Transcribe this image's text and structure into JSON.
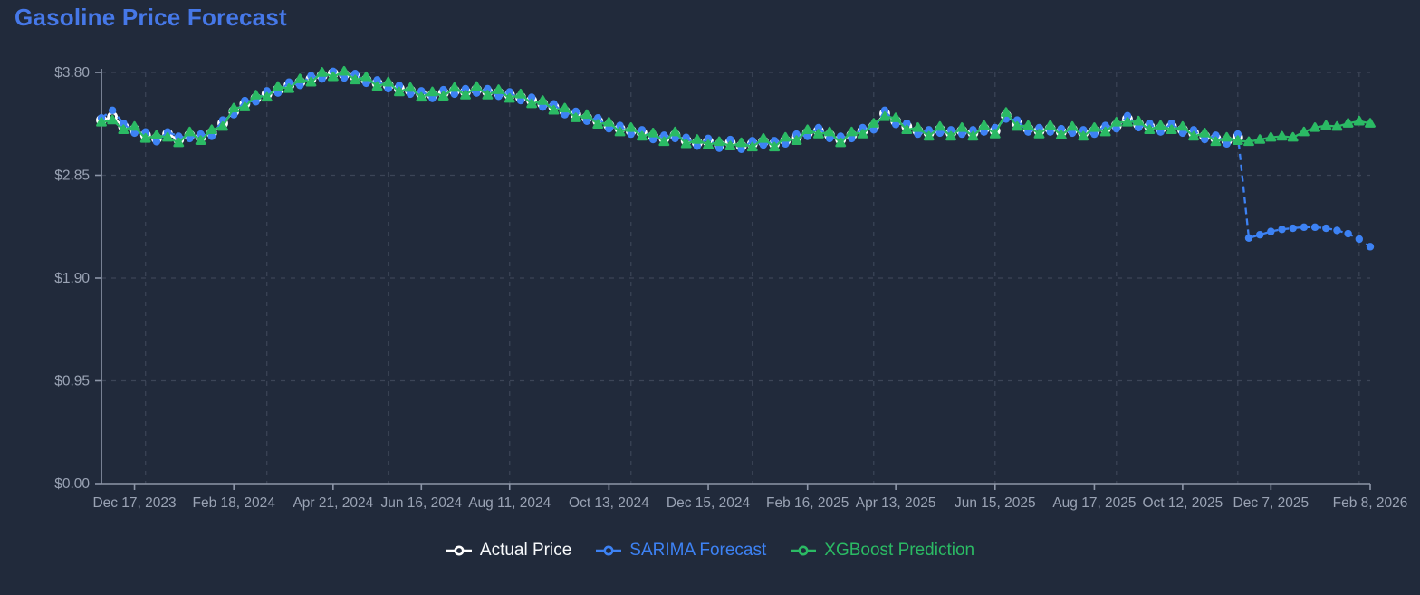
{
  "title": "Gasoline Price Forecast",
  "colors": {
    "background": "#212A3B",
    "title": "#4678E8",
    "axis_line": "#8D96A8",
    "grid_line": "#3C4557",
    "tick_label": "#9AA3B4",
    "actual": "#FFFFFF",
    "sarima": "#3D82F4",
    "xgboost": "#2BBA64"
  },
  "legend": {
    "items": [
      {
        "label": "Actual Price",
        "series_key": "actual"
      },
      {
        "label": "SARIMA Forecast",
        "series_key": "sarima"
      },
      {
        "label": "XGBoost Prediction",
        "series_key": "xgboost"
      }
    ]
  },
  "chart_data": {
    "type": "line",
    "title": "Gasoline Price Forecast",
    "x_unit": "weekly",
    "ylim": [
      0,
      3.8
    ],
    "y_tick_values": [
      0,
      0.95,
      1.9,
      2.85,
      3.8
    ],
    "y_tick_labels": [
      "$0.00",
      "$0.95",
      "$1.90",
      "$2.85",
      "$3.80"
    ],
    "x_total_weeks": 115,
    "x_tick_weeks": [
      3,
      12,
      21,
      29,
      37,
      46,
      55,
      64,
      72,
      81,
      90,
      98,
      106,
      115
    ],
    "x_tick_labels": [
      "Dec 17, 2023",
      "Feb 18, 2024",
      "Apr 21, 2024",
      "Jun 16, 2024",
      "Aug 11, 2024",
      "Oct 13, 2024",
      "Dec 15, 2024",
      "Feb 16, 2025",
      "Apr 13, 2025",
      "Jun 15, 2025",
      "Aug 17, 2025",
      "Oct 12, 2025",
      "Dec 7, 2025",
      "Feb 8, 2026"
    ],
    "v_grid_weeks": [
      4,
      15,
      26,
      37,
      48,
      59,
      70,
      81,
      92,
      103,
      114
    ],
    "forecast_start_index": 104,
    "grid": true,
    "legend_position": "bottom",
    "series": [
      {
        "name": "Actual Price",
        "color": "#FFFFFF",
        "marker": "open-circle",
        "line": "solid",
        "values": [
          3.36,
          3.39,
          3.3,
          3.27,
          3.22,
          3.19,
          3.23,
          3.18,
          3.22,
          3.2,
          3.24,
          3.33,
          3.44,
          3.51,
          3.56,
          3.6,
          3.64,
          3.68,
          3.71,
          3.74,
          3.77,
          3.79,
          3.78,
          3.76,
          3.73,
          3.7,
          3.68,
          3.65,
          3.63,
          3.6,
          3.59,
          3.61,
          3.63,
          3.62,
          3.64,
          3.62,
          3.61,
          3.59,
          3.57,
          3.54,
          3.51,
          3.48,
          3.44,
          3.41,
          3.38,
          3.35,
          3.31,
          3.28,
          3.26,
          3.24,
          3.21,
          3.19,
          3.22,
          3.17,
          3.15,
          3.16,
          3.13,
          3.15,
          3.12,
          3.14,
          3.16,
          3.14,
          3.17,
          3.2,
          3.24,
          3.26,
          3.22,
          3.18,
          3.22,
          3.26,
          3.3,
          3.42,
          3.35,
          3.3,
          3.26,
          3.24,
          3.27,
          3.24,
          3.26,
          3.24,
          3.28,
          3.26,
          3.4,
          3.33,
          3.28,
          3.26,
          3.28,
          3.25,
          3.27,
          3.24,
          3.26,
          3.28,
          3.31,
          3.37,
          3.32,
          3.3,
          3.28,
          3.3,
          3.27,
          3.24,
          3.21,
          3.19,
          3.17,
          3.2
        ]
      },
      {
        "name": "SARIMA Forecast",
        "color": "#3D82F4",
        "marker": "circle",
        "line": "dashed",
        "values": [
          3.38,
          3.45,
          3.33,
          3.24,
          3.25,
          3.16,
          3.25,
          3.21,
          3.19,
          3.23,
          3.21,
          3.36,
          3.41,
          3.54,
          3.53,
          3.63,
          3.61,
          3.71,
          3.68,
          3.77,
          3.74,
          3.81,
          3.75,
          3.79,
          3.7,
          3.73,
          3.65,
          3.68,
          3.6,
          3.63,
          3.56,
          3.64,
          3.6,
          3.65,
          3.61,
          3.65,
          3.58,
          3.62,
          3.54,
          3.57,
          3.48,
          3.51,
          3.41,
          3.44,
          3.35,
          3.38,
          3.28,
          3.31,
          3.23,
          3.27,
          3.18,
          3.22,
          3.19,
          3.2,
          3.12,
          3.19,
          3.1,
          3.18,
          3.09,
          3.17,
          3.13,
          3.17,
          3.14,
          3.23,
          3.21,
          3.29,
          3.19,
          3.21,
          3.19,
          3.29,
          3.27,
          3.45,
          3.32,
          3.33,
          3.23,
          3.27,
          3.24,
          3.27,
          3.23,
          3.27,
          3.25,
          3.29,
          3.37,
          3.36,
          3.25,
          3.29,
          3.25,
          3.28,
          3.24,
          3.27,
          3.23,
          3.31,
          3.28,
          3.4,
          3.29,
          3.33,
          3.25,
          3.33,
          3.24,
          3.27,
          3.18,
          3.22,
          3.14,
          3.23,
          2.27,
          2.3,
          2.33,
          2.35,
          2.36,
          2.37,
          2.37,
          2.36,
          2.34,
          2.31,
          2.26,
          2.19
        ]
      },
      {
        "name": "XGBoost Prediction",
        "color": "#2BBA64",
        "marker": "triangle",
        "line": "solid",
        "values": [
          3.34,
          3.36,
          3.27,
          3.3,
          3.19,
          3.22,
          3.2,
          3.15,
          3.25,
          3.17,
          3.27,
          3.3,
          3.47,
          3.48,
          3.59,
          3.57,
          3.67,
          3.65,
          3.74,
          3.71,
          3.8,
          3.76,
          3.81,
          3.73,
          3.76,
          3.67,
          3.71,
          3.62,
          3.66,
          3.57,
          3.62,
          3.58,
          3.66,
          3.59,
          3.67,
          3.59,
          3.64,
          3.56,
          3.6,
          3.51,
          3.54,
          3.45,
          3.47,
          3.38,
          3.41,
          3.32,
          3.34,
          3.25,
          3.29,
          3.21,
          3.24,
          3.16,
          3.25,
          3.14,
          3.18,
          3.13,
          3.16,
          3.12,
          3.15,
          3.11,
          3.19,
          3.11,
          3.2,
          3.17,
          3.27,
          3.23,
          3.25,
          3.15,
          3.25,
          3.23,
          3.33,
          3.39,
          3.38,
          3.27,
          3.29,
          3.21,
          3.3,
          3.21,
          3.29,
          3.21,
          3.31,
          3.23,
          3.43,
          3.3,
          3.31,
          3.23,
          3.31,
          3.22,
          3.3,
          3.21,
          3.29,
          3.25,
          3.34,
          3.34,
          3.35,
          3.27,
          3.31,
          3.27,
          3.3,
          3.21,
          3.24,
          3.16,
          3.2,
          3.17,
          3.16,
          3.18,
          3.2,
          3.21,
          3.2,
          3.25,
          3.29,
          3.31,
          3.3,
          3.33,
          3.35,
          3.33
        ]
      }
    ]
  }
}
